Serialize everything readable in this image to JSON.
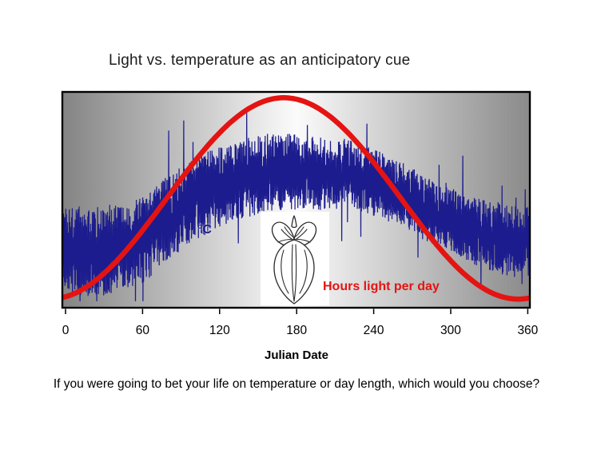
{
  "slide": {
    "title": "Light vs. temperature as an anticipatory cue",
    "caption": "If you were going to bet your life on temperature or day length, which would you choose?"
  },
  "chart_data": {
    "type": "line",
    "title": "Light vs. temperature as an anticipatory cue",
    "xlabel": "Julian Date",
    "ylabel": "",
    "x_ticks": [
      0,
      60,
      120,
      180,
      240,
      300,
      360
    ],
    "xlim": [
      0,
      362
    ],
    "ylim": [
      0,
      1
    ],
    "y_axis_shown": false,
    "grid": false,
    "legend_position": "in-plot text labels",
    "plot_background": "gray-to-white horizontal gradient",
    "series": [
      {
        "name": "°C",
        "color": "#1c1c8e",
        "style": "noisy daily temperature trace",
        "x_step_days": 0.45,
        "mean_keypoints": [
          [
            0,
            0.27
          ],
          [
            20,
            0.25
          ],
          [
            40,
            0.28
          ],
          [
            60,
            0.31
          ],
          [
            80,
            0.42
          ],
          [
            100,
            0.5
          ],
          [
            120,
            0.56
          ],
          [
            140,
            0.6
          ],
          [
            160,
            0.63
          ],
          [
            180,
            0.63
          ],
          [
            200,
            0.62
          ],
          [
            220,
            0.62
          ],
          [
            240,
            0.58
          ],
          [
            260,
            0.53
          ],
          [
            280,
            0.46
          ],
          [
            300,
            0.4
          ],
          [
            320,
            0.35
          ],
          [
            340,
            0.32
          ],
          [
            362,
            0.3
          ]
        ],
        "noise_amplitude_keypoints": [
          [
            0,
            0.16
          ],
          [
            60,
            0.15
          ],
          [
            120,
            0.14
          ],
          [
            180,
            0.13
          ],
          [
            240,
            0.115
          ],
          [
            300,
            0.11
          ],
          [
            362,
            0.13
          ]
        ]
      },
      {
        "name": "Hours light per day",
        "color": "#e41412",
        "style": "smooth sinusoid",
        "peak_day": 170,
        "min_norm": 0.04,
        "max_norm": 0.973
      }
    ],
    "annotations": [
      {
        "type": "illustration",
        "desc": "black-and-white line drawing of a plant bud",
        "x_day": 178,
        "position": "bottom center of plot"
      }
    ]
  },
  "colors": {
    "temperature": "#1c1c8e",
    "photoperiod": "#e41412",
    "plot_border": "#000000",
    "gradient_edge": "#878787",
    "gradient_center": "#fbfbfb"
  }
}
